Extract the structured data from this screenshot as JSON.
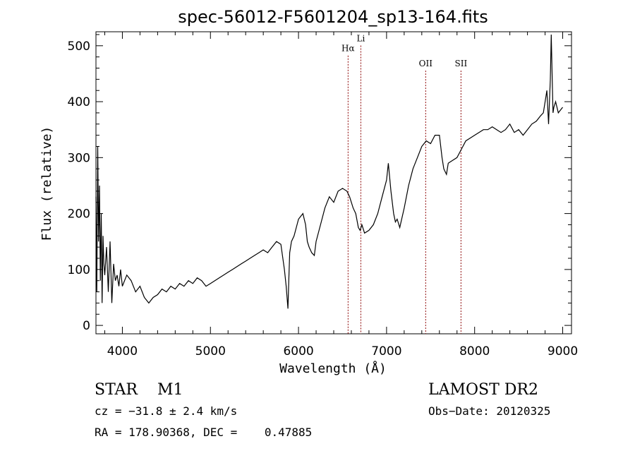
{
  "chart_data": {
    "type": "line",
    "title": "spec-56012-F5601204_sp13-164.fits",
    "xlabel": "Wavelength (Å)",
    "ylabel": "Flux (relative)",
    "xlim": [
      3700,
      9100
    ],
    "ylim": [
      -15,
      525
    ],
    "xticks": [
      4000,
      5000,
      6000,
      7000,
      8000,
      9000
    ],
    "yticks": [
      0,
      100,
      200,
      300,
      400,
      500
    ],
    "grid": false,
    "series": [
      {
        "x": [
          3700,
          3710,
          3720,
          3730,
          3740,
          3750,
          3760,
          3770,
          3780,
          3790,
          3800,
          3820,
          3840,
          3860,
          3880,
          3900,
          3920,
          3940,
          3960,
          3980,
          4000,
          4050,
          4100,
          4150,
          4200,
          4250,
          4300,
          4350,
          4400,
          4450,
          4500,
          4550,
          4600,
          4650,
          4700,
          4750,
          4800,
          4850,
          4900,
          4950,
          5000,
          5050,
          5100,
          5150,
          5200,
          5250,
          5300,
          5350,
          5400,
          5450,
          5500,
          5550,
          5600,
          5650,
          5700,
          5750,
          5800,
          5840,
          5860,
          5880,
          5890,
          5900,
          5920,
          5950,
          6000,
          6050,
          6080,
          6100,
          6120,
          6150,
          6180,
          6200,
          6250,
          6300,
          6350,
          6400,
          6450,
          6500,
          6550,
          6580,
          6620,
          6650,
          6680,
          6700,
          6720,
          6750,
          6800,
          6850,
          6900,
          6950,
          7000,
          7020,
          7050,
          7080,
          7100,
          7120,
          7150,
          7200,
          7250,
          7300,
          7350,
          7400,
          7450,
          7500,
          7550,
          7600,
          7630,
          7650,
          7680,
          7700,
          7750,
          7800,
          7850,
          7900,
          7950,
          8000,
          8050,
          8100,
          8150,
          8200,
          8250,
          8300,
          8350,
          8400,
          8450,
          8500,
          8550,
          8600,
          8650,
          8700,
          8750,
          8780,
          8800,
          8820,
          8840,
          8860,
          8870,
          8880,
          8890,
          8900,
          8920,
          8950,
          9000
        ],
        "y": [
          230,
          60,
          320,
          150,
          250,
          80,
          200,
          40,
          160,
          110,
          90,
          140,
          60,
          150,
          40,
          110,
          80,
          90,
          70,
          100,
          70,
          90,
          80,
          60,
          70,
          50,
          40,
          50,
          55,
          65,
          60,
          70,
          65,
          75,
          70,
          80,
          75,
          85,
          80,
          70,
          75,
          80,
          85,
          90,
          95,
          100,
          105,
          110,
          115,
          120,
          125,
          130,
          135,
          130,
          140,
          150,
          145,
          100,
          70,
          30,
          80,
          130,
          150,
          160,
          190,
          200,
          180,
          150,
          140,
          130,
          125,
          150,
          180,
          210,
          230,
          220,
          240,
          245,
          240,
          230,
          210,
          200,
          175,
          170,
          180,
          165,
          170,
          180,
          200,
          230,
          260,
          290,
          240,
          200,
          185,
          190,
          175,
          210,
          250,
          280,
          300,
          320,
          330,
          325,
          340,
          340,
          300,
          280,
          270,
          290,
          295,
          300,
          315,
          330,
          335,
          340,
          345,
          350,
          350,
          355,
          350,
          345,
          350,
          360,
          345,
          350,
          340,
          350,
          360,
          365,
          375,
          380,
          400,
          420,
          360,
          440,
          520,
          450,
          380,
          390,
          400,
          380,
          390
        ]
      }
    ],
    "emission_lines": [
      {
        "label": "Hα",
        "x": 6563,
        "label_y": 490
      },
      {
        "label": "Li",
        "x": 6708,
        "label_y": 508
      },
      {
        "label": "OII",
        "x": 7444,
        "label_y": 463
      },
      {
        "label": "SII",
        "x": 7845,
        "label_y": 463
      }
    ]
  },
  "info": {
    "star_line": "STAR    M1",
    "survey": "LAMOST DR2",
    "cz": "cz = −31.8 ± 2.4 km/s",
    "obs_date": "Obs−Date: 20120325",
    "coords": "RA = 178.90368, DEC =    0.47885"
  },
  "colors": {
    "spectrum": "#000000",
    "line_markers": "#8b0000",
    "axes": "#000000"
  }
}
